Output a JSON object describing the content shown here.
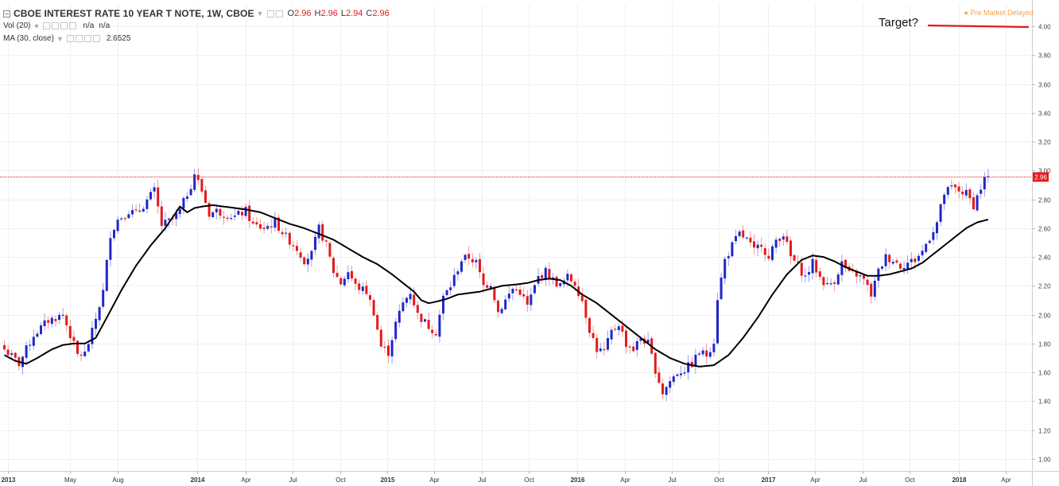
{
  "header": {
    "symbol_title": "CBOE INTEREST RATE 10 YEAR T NOTE, 1W, CBOE",
    "ohlc": [
      {
        "key": "O",
        "value": "2.96"
      },
      {
        "key": "H",
        "value": "2.96"
      },
      {
        "key": "L",
        "value": "2.94"
      },
      {
        "key": "C",
        "value": "2.96"
      }
    ],
    "vol_label": "Vol (20)",
    "vol_values": [
      "n/a",
      "n/a"
    ],
    "ma_label": "MA (30, close)",
    "ma_value": "2.6525",
    "market_status": "Pre Market Delayed"
  },
  "annotation": {
    "text": "Target?",
    "level": 4.0,
    "color": "#e31a1c"
  },
  "colors": {
    "up": "#1f27c9",
    "down": "#e31a1c",
    "ma": "#000000",
    "last_price_line": "#e31a1c"
  },
  "chart_data": {
    "type": "candlestick",
    "y_axis": {
      "min": 1.0,
      "max": 4.0,
      "ticks": [
        "1.00",
        "1.20",
        "1.40",
        "1.60",
        "1.80",
        "2.00",
        "2.20",
        "2.40",
        "2.60",
        "2.80",
        "3.00",
        "3.20",
        "3.40",
        "3.60",
        "3.80",
        "4.00"
      ]
    },
    "x_ticks": [
      {
        "label": "2013",
        "bold": true,
        "week": 0.9
      },
      {
        "label": "May",
        "bold": false,
        "week": 17.9
      },
      {
        "label": "Aug",
        "bold": false,
        "week": 31.0
      },
      {
        "label": "2014",
        "bold": true,
        "week": 52.7
      },
      {
        "label": "Apr",
        "bold": false,
        "week": 66.0
      },
      {
        "label": "Jul",
        "bold": false,
        "week": 78.9
      },
      {
        "label": "Oct",
        "bold": false,
        "week": 91.8
      },
      {
        "label": "2015",
        "bold": true,
        "week": 104.7
      },
      {
        "label": "Apr",
        "bold": false,
        "week": 117.6
      },
      {
        "label": "Jul",
        "bold": false,
        "week": 130.5
      },
      {
        "label": "Oct",
        "bold": false,
        "week": 143.4
      },
      {
        "label": "2016",
        "bold": true,
        "week": 156.7
      },
      {
        "label": "Apr",
        "bold": false,
        "week": 169.6
      },
      {
        "label": "Jul",
        "bold": false,
        "week": 182.5
      },
      {
        "label": "Oct",
        "bold": false,
        "week": 195.4
      },
      {
        "label": "2017",
        "bold": true,
        "week": 208.8
      },
      {
        "label": "Apr",
        "bold": false,
        "week": 221.7
      },
      {
        "label": "Jul",
        "bold": false,
        "week": 234.6
      },
      {
        "label": "Oct",
        "bold": false,
        "week": 247.5
      },
      {
        "label": "2018",
        "bold": true,
        "week": 260.9
      },
      {
        "label": "Apr",
        "bold": false,
        "week": 273.8
      }
    ],
    "last_price": 2.96,
    "last_price_label": "2.96",
    "close_anchors": [
      [
        0,
        1.76
      ],
      [
        4,
        1.66
      ],
      [
        8,
        1.86
      ],
      [
        12,
        1.96
      ],
      [
        16,
        2.0
      ],
      [
        18,
        1.86
      ],
      [
        20,
        1.72
      ],
      [
        22,
        1.73
      ],
      [
        24,
        1.88
      ],
      [
        27,
        2.16
      ],
      [
        29,
        2.56
      ],
      [
        31,
        2.66
      ],
      [
        34,
        2.72
      ],
      [
        36,
        2.7
      ],
      [
        38,
        2.76
      ],
      [
        41,
        2.86
      ],
      [
        43,
        2.62
      ],
      [
        46,
        2.66
      ],
      [
        48,
        2.72
      ],
      [
        51,
        2.9
      ],
      [
        52,
        2.98
      ],
      [
        54,
        2.86
      ],
      [
        56,
        2.7
      ],
      [
        58,
        2.72
      ],
      [
        60,
        2.7
      ],
      [
        63,
        2.68
      ],
      [
        66,
        2.72
      ],
      [
        68,
        2.62
      ],
      [
        71,
        2.6
      ],
      [
        74,
        2.64
      ],
      [
        77,
        2.54
      ],
      [
        80,
        2.46
      ],
      [
        82,
        2.38
      ],
      [
        84,
        2.42
      ],
      [
        86,
        2.6
      ],
      [
        88,
        2.48
      ],
      [
        90,
        2.3
      ],
      [
        92,
        2.22
      ],
      [
        94,
        2.3
      ],
      [
        96,
        2.2
      ],
      [
        99,
        2.16
      ],
      [
        101,
        2.02
      ],
      [
        103,
        1.78
      ],
      [
        105,
        1.74
      ],
      [
        107,
        1.94
      ],
      [
        109,
        2.08
      ],
      [
        111,
        2.16
      ],
      [
        113,
        2.0
      ],
      [
        116,
        1.92
      ],
      [
        118,
        1.88
      ],
      [
        120,
        2.12
      ],
      [
        122,
        2.2
      ],
      [
        125,
        2.38
      ],
      [
        127,
        2.4
      ],
      [
        129,
        2.36
      ],
      [
        131,
        2.2
      ],
      [
        133,
        2.22
      ],
      [
        135,
        2.02
      ],
      [
        137,
        2.1
      ],
      [
        139,
        2.18
      ],
      [
        141,
        2.16
      ],
      [
        143,
        2.06
      ],
      [
        146,
        2.26
      ],
      [
        148,
        2.3
      ],
      [
        150,
        2.24
      ],
      [
        152,
        2.2
      ],
      [
        154,
        2.26
      ],
      [
        156,
        2.22
      ],
      [
        158,
        2.1
      ],
      [
        160,
        1.9
      ],
      [
        162,
        1.76
      ],
      [
        164,
        1.74
      ],
      [
        166,
        1.88
      ],
      [
        168,
        1.94
      ],
      [
        170,
        1.8
      ],
      [
        172,
        1.76
      ],
      [
        174,
        1.84
      ],
      [
        176,
        1.8
      ],
      [
        178,
        1.62
      ],
      [
        180,
        1.46
      ],
      [
        182,
        1.54
      ],
      [
        184,
        1.6
      ],
      [
        186,
        1.62
      ],
      [
        188,
        1.66
      ],
      [
        190,
        1.74
      ],
      [
        192,
        1.72
      ],
      [
        194,
        1.82
      ],
      [
        195,
        2.12
      ],
      [
        197,
        2.38
      ],
      [
        199,
        2.48
      ],
      [
        201,
        2.56
      ],
      [
        203,
        2.52
      ],
      [
        205,
        2.44
      ],
      [
        207,
        2.5
      ],
      [
        209,
        2.38
      ],
      [
        211,
        2.52
      ],
      [
        213,
        2.56
      ],
      [
        215,
        2.4
      ],
      [
        217,
        2.34
      ],
      [
        219,
        2.26
      ],
      [
        221,
        2.36
      ],
      [
        223,
        2.26
      ],
      [
        225,
        2.2
      ],
      [
        227,
        2.24
      ],
      [
        229,
        2.36
      ],
      [
        231,
        2.28
      ],
      [
        233,
        2.28
      ],
      [
        235,
        2.24
      ],
      [
        237,
        2.14
      ],
      [
        239,
        2.3
      ],
      [
        241,
        2.4
      ],
      [
        243,
        2.38
      ],
      [
        245,
        2.34
      ],
      [
        247,
        2.36
      ],
      [
        249,
        2.38
      ],
      [
        251,
        2.44
      ],
      [
        253,
        2.54
      ],
      [
        255,
        2.64
      ],
      [
        257,
        2.84
      ],
      [
        259,
        2.88
      ],
      [
        261,
        2.86
      ],
      [
        263,
        2.84
      ],
      [
        265,
        2.76
      ],
      [
        267,
        2.88
      ],
      [
        268,
        2.94
      ],
      [
        269,
        2.96
      ]
    ],
    "ma_anchors": [
      [
        0,
        1.72
      ],
      [
        3,
        1.68
      ],
      [
        6,
        1.66
      ],
      [
        9,
        1.7
      ],
      [
        13,
        1.76
      ],
      [
        16,
        1.79
      ],
      [
        19,
        1.8
      ],
      [
        22,
        1.8
      ],
      [
        25,
        1.84
      ],
      [
        28,
        1.98
      ],
      [
        32,
        2.17
      ],
      [
        36,
        2.34
      ],
      [
        40,
        2.48
      ],
      [
        44,
        2.6
      ],
      [
        48,
        2.75
      ],
      [
        50,
        2.71
      ],
      [
        52,
        2.74
      ],
      [
        54,
        2.75
      ],
      [
        57,
        2.76
      ],
      [
        60,
        2.75
      ],
      [
        63,
        2.74
      ],
      [
        66,
        2.73
      ],
      [
        70,
        2.71
      ],
      [
        74,
        2.67
      ],
      [
        78,
        2.63
      ],
      [
        82,
        2.6
      ],
      [
        86,
        2.56
      ],
      [
        90,
        2.52
      ],
      [
        94,
        2.46
      ],
      [
        98,
        2.4
      ],
      [
        102,
        2.35
      ],
      [
        106,
        2.28
      ],
      [
        109,
        2.22
      ],
      [
        112,
        2.16
      ],
      [
        114,
        2.1
      ],
      [
        116,
        2.08
      ],
      [
        118,
        2.09
      ],
      [
        121,
        2.11
      ],
      [
        124,
        2.14
      ],
      [
        127,
        2.15
      ],
      [
        130,
        2.16
      ],
      [
        133,
        2.18
      ],
      [
        136,
        2.2
      ],
      [
        140,
        2.21
      ],
      [
        143,
        2.22
      ],
      [
        146,
        2.24
      ],
      [
        149,
        2.25
      ],
      [
        152,
        2.24
      ],
      [
        155,
        2.2
      ],
      [
        158,
        2.14
      ],
      [
        162,
        2.08
      ],
      [
        166,
        2.0
      ],
      [
        170,
        1.92
      ],
      [
        174,
        1.84
      ],
      [
        178,
        1.76
      ],
      [
        182,
        1.7
      ],
      [
        186,
        1.66
      ],
      [
        190,
        1.64
      ],
      [
        194,
        1.65
      ],
      [
        198,
        1.72
      ],
      [
        202,
        1.84
      ],
      [
        206,
        1.98
      ],
      [
        210,
        2.14
      ],
      [
        214,
        2.28
      ],
      [
        218,
        2.38
      ],
      [
        221,
        2.41
      ],
      [
        224,
        2.4
      ],
      [
        227,
        2.37
      ],
      [
        230,
        2.33
      ],
      [
        233,
        2.3
      ],
      [
        236,
        2.27
      ],
      [
        239,
        2.27
      ],
      [
        242,
        2.28
      ],
      [
        245,
        2.3
      ],
      [
        248,
        2.32
      ],
      [
        251,
        2.36
      ],
      [
        254,
        2.42
      ],
      [
        257,
        2.48
      ],
      [
        260,
        2.54
      ],
      [
        263,
        2.6
      ],
      [
        266,
        2.64
      ],
      [
        269,
        2.66
      ]
    ]
  }
}
